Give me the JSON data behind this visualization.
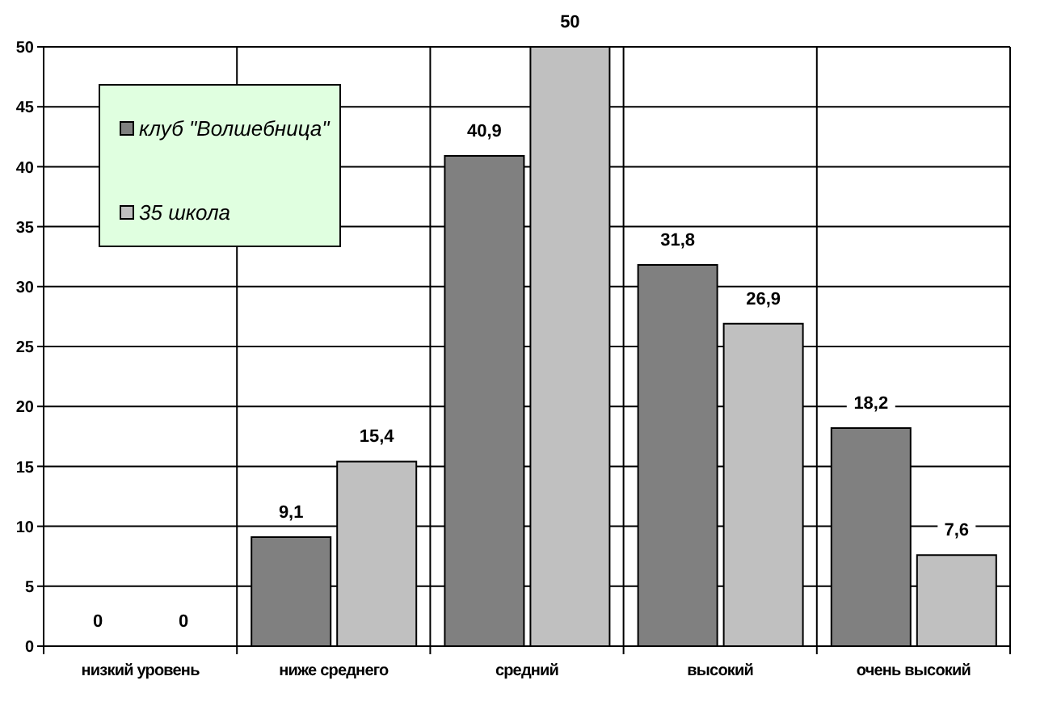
{
  "chart_data": {
    "type": "bar",
    "categories": [
      "низкий уровень",
      "ниже среднего",
      "средний",
      "высокий",
      "очень высокий"
    ],
    "series": [
      {
        "name": "клуб \"Волшебница\"",
        "color": "#808080",
        "values": [
          0,
          9.1,
          40.9,
          31.8,
          18.2
        ],
        "value_labels": [
          "0",
          "9,1",
          "40,9",
          "31,8",
          "18,2"
        ]
      },
      {
        "name": "35 школа",
        "color": "#c0c0c0",
        "values": [
          0,
          15.4,
          50,
          26.9,
          7.6
        ],
        "value_labels": [
          "0",
          "15,4",
          "50",
          "26,9",
          "7,6"
        ]
      }
    ],
    "ylim": [
      0,
      50
    ],
    "yticks": [
      0,
      5,
      10,
      15,
      20,
      25,
      30,
      35,
      40,
      45,
      50
    ],
    "grid": true,
    "legend": "top left"
  }
}
